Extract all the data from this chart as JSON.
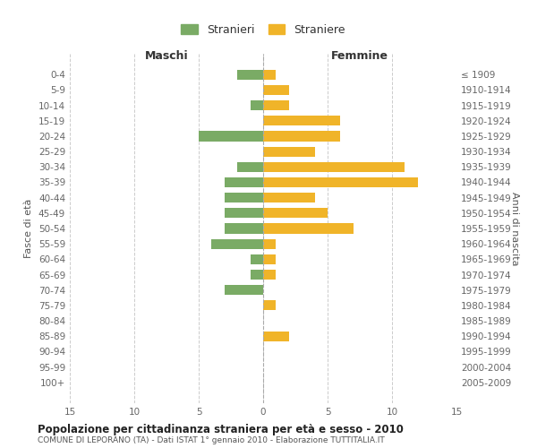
{
  "age_groups": [
    "0-4",
    "5-9",
    "10-14",
    "15-19",
    "20-24",
    "25-29",
    "30-34",
    "35-39",
    "40-44",
    "45-49",
    "50-54",
    "55-59",
    "60-64",
    "65-69",
    "70-74",
    "75-79",
    "80-84",
    "85-89",
    "90-94",
    "95-99",
    "100+"
  ],
  "birth_years": [
    "2005-2009",
    "2000-2004",
    "1995-1999",
    "1990-1994",
    "1985-1989",
    "1980-1984",
    "1975-1979",
    "1970-1974",
    "1965-1969",
    "1960-1964",
    "1955-1959",
    "1950-1954",
    "1945-1949",
    "1940-1944",
    "1935-1939",
    "1930-1934",
    "1925-1929",
    "1920-1924",
    "1915-1919",
    "1910-1914",
    "≤ 1909"
  ],
  "maschi": [
    2,
    0,
    1,
    0,
    5,
    0,
    2,
    3,
    3,
    3,
    3,
    4,
    1,
    1,
    3,
    0,
    0,
    0,
    0,
    0,
    0
  ],
  "femmine": [
    1,
    2,
    2,
    6,
    6,
    4,
    11,
    12,
    4,
    5,
    7,
    1,
    1,
    1,
    0,
    1,
    0,
    2,
    0,
    0,
    0
  ],
  "color_maschi": "#7aab65",
  "color_femmine": "#f0b429",
  "title": "Popolazione per cittadinanza straniera per età e sesso - 2010",
  "subtitle": "COMUNE DI LEPORANO (TA) - Dati ISTAT 1° gennaio 2010 - Elaborazione TUTTITALIA.IT",
  "xlabel_left": "Maschi",
  "xlabel_right": "Femmine",
  "ylabel_left": "Fasce di età",
  "ylabel_right": "Anni di nascita",
  "xlim": 15,
  "legend_stranieri": "Stranieri",
  "legend_straniere": "Straniere",
  "bg_color": "#ffffff",
  "grid_color": "#cccccc",
  "axis_label_color": "#555555",
  "tick_label_color": "#666666"
}
